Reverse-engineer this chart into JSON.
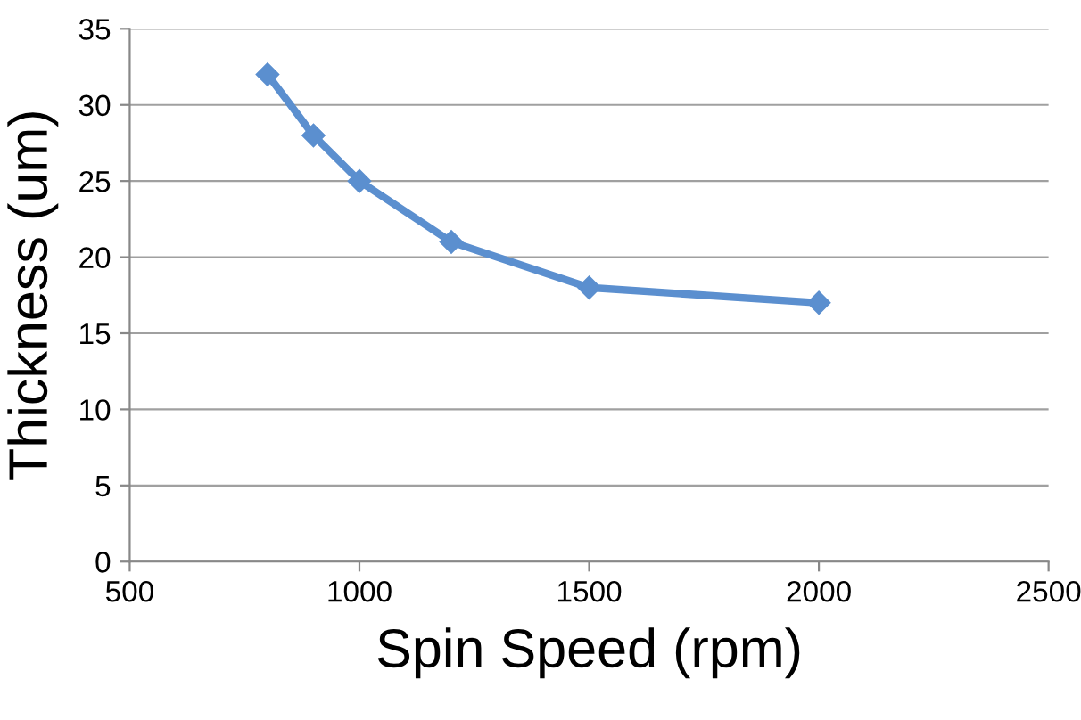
{
  "chart_data": {
    "type": "line",
    "xlabel": "Spin Speed (rpm)",
    "ylabel": "Thickness (um)",
    "x": [
      800,
      900,
      1000,
      1200,
      1500,
      2000
    ],
    "series": [
      {
        "color": "#5b8fcf",
        "values": [
          32,
          28,
          25,
          21,
          18,
          17
        ]
      }
    ],
    "xlim": [
      500,
      2500
    ],
    "xticks": [
      500,
      1000,
      1500,
      2000,
      2500
    ],
    "ylim": [
      0,
      35
    ],
    "yticks": [
      0,
      5,
      10,
      15,
      20,
      25,
      30,
      35
    ],
    "grid": "y",
    "marker": "diamond",
    "line_style": "solid"
  }
}
